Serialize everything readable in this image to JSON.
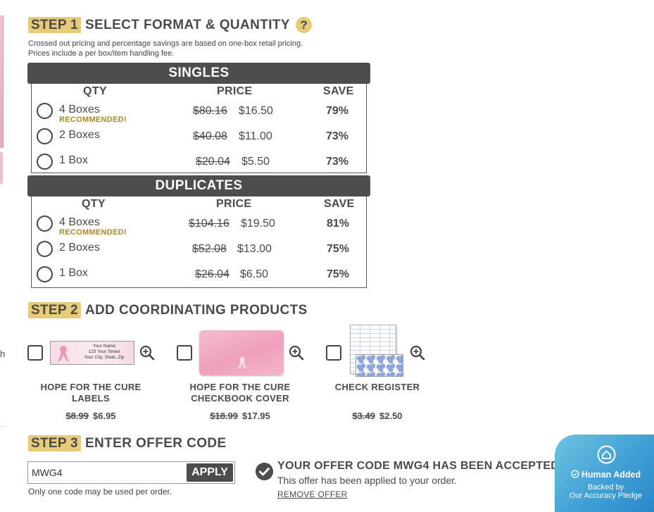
{
  "step1": {
    "badge": "STEP 1",
    "title": "SELECT FORMAT & QUANTITY",
    "help": "?",
    "note_line1": "Crossed out pricing and percentage savings are based on one-box retail pricing.",
    "note_line2": "Prices include a per box/item handling fee."
  },
  "columns": {
    "qty": "QTY",
    "price": "PRICE",
    "save": "SAVE"
  },
  "singles": {
    "title": "SINGLES",
    "rows": [
      {
        "qty": "4 Boxes",
        "recommended": "RECOMMENDED!",
        "old": "$80.16",
        "new": "$16.50",
        "save": "79%"
      },
      {
        "qty": "2 Boxes",
        "old": "$40.08",
        "new": "$11.00",
        "save": "73%"
      },
      {
        "qty": "1 Box",
        "old": "$20.04",
        "new": "$5.50",
        "save": "73%"
      }
    ]
  },
  "duplicates": {
    "title": "DUPLICATES",
    "rows": [
      {
        "qty": "4 Boxes",
        "recommended": "RECOMMENDED!",
        "old": "$104.16",
        "new": "$19.50",
        "save": "81%"
      },
      {
        "qty": "2 Boxes",
        "old": "$52.08",
        "new": "$13.00",
        "save": "75%"
      },
      {
        "qty": "1 Box",
        "old": "$26.04",
        "new": "$6.50",
        "save": "75%"
      }
    ]
  },
  "step2": {
    "badge": "STEP 2",
    "title": "ADD COORDINATING PRODUCTS",
    "products": [
      {
        "name1": "HOPE FOR THE CURE",
        "name2": "LABELS",
        "old": "$8.99",
        "new": "$6.95",
        "label_line1": "Your Name",
        "label_line2": "123 Your Street",
        "label_line3": "Your City, State, Zip"
      },
      {
        "name1": "HOPE FOR THE CURE",
        "name2": "CHECKBOOK COVER",
        "old": "$18.99",
        "new": "$17.95"
      },
      {
        "name1": "CHECK REGISTER",
        "name2": "",
        "old": "$3.49",
        "new": "$2.50"
      }
    ]
  },
  "step3": {
    "badge": "STEP 3",
    "title": "ENTER OFFER CODE",
    "code_value": "MWG4",
    "apply": "APPLY",
    "note": "Only one code may be used per order.",
    "accepted": "YOUR OFFER CODE MWG4 HAS BEEN ACCEPTED.",
    "applied": "This offer has been applied to your order.",
    "remove": "REMOVE OFFER"
  },
  "pledge": {
    "head": "Human Added",
    "sub1": "Backed by",
    "sub2": "Our Accuracy Pledge"
  },
  "edge_text": "h"
}
